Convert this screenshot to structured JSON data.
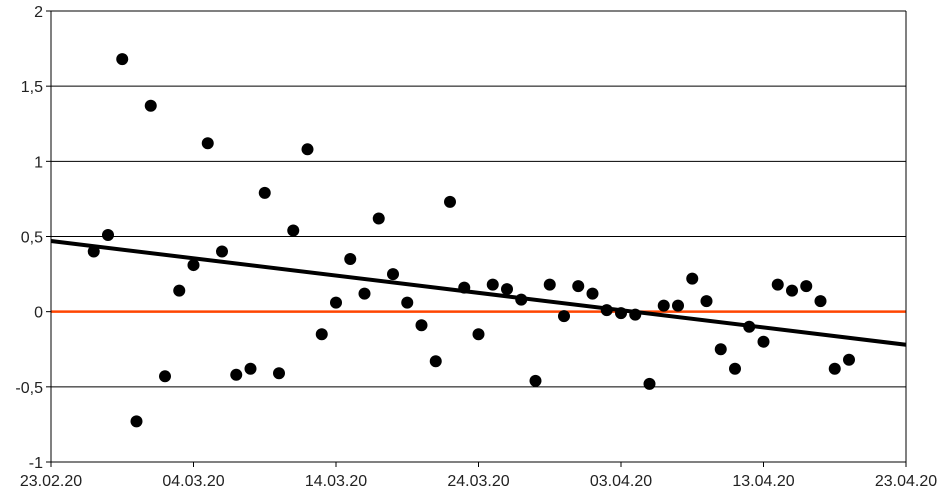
{
  "chart_data": {
    "type": "scatter",
    "title": "",
    "xlabel": "",
    "ylabel": "",
    "ylim": [
      -1,
      2
    ],
    "xlim": [
      "23.02.20",
      "23.04.20"
    ],
    "grid": true,
    "x_tick_labels": [
      "23.02.20",
      "04.03.20",
      "14.03.20",
      "24.03.20",
      "03.04.20",
      "13.04.20",
      "23.04.20"
    ],
    "y_tick_labels": [
      "-1",
      "-0,5",
      "0",
      "0,5",
      "1",
      "1,5",
      "2"
    ],
    "series": [
      {
        "type": "scatter",
        "color": "#000000",
        "points": [
          {
            "x": "26.02.20",
            "y": 0.4
          },
          {
            "x": "27.02.20",
            "y": 0.51
          },
          {
            "x": "28.02.20",
            "y": 1.68
          },
          {
            "x": "29.02.20",
            "y": -0.73
          },
          {
            "x": "01.03.20",
            "y": 1.37
          },
          {
            "x": "02.03.20",
            "y": -0.43
          },
          {
            "x": "03.03.20",
            "y": 0.14
          },
          {
            "x": "04.03.20",
            "y": 0.31
          },
          {
            "x": "05.03.20",
            "y": 1.12
          },
          {
            "x": "06.03.20",
            "y": 0.4
          },
          {
            "x": "07.03.20",
            "y": -0.42
          },
          {
            "x": "08.03.20",
            "y": -0.38
          },
          {
            "x": "09.03.20",
            "y": 0.79
          },
          {
            "x": "10.03.20",
            "y": -0.41
          },
          {
            "x": "11.03.20",
            "y": 0.54
          },
          {
            "x": "12.03.20",
            "y": 1.08
          },
          {
            "x": "13.03.20",
            "y": -0.15
          },
          {
            "x": "14.03.20",
            "y": 0.06
          },
          {
            "x": "15.03.20",
            "y": 0.35
          },
          {
            "x": "16.03.20",
            "y": 0.12
          },
          {
            "x": "17.03.20",
            "y": 0.62
          },
          {
            "x": "18.03.20",
            "y": 0.25
          },
          {
            "x": "19.03.20",
            "y": 0.06
          },
          {
            "x": "20.03.20",
            "y": -0.09
          },
          {
            "x": "21.03.20",
            "y": -0.33
          },
          {
            "x": "22.03.20",
            "y": 0.73
          },
          {
            "x": "23.03.20",
            "y": 0.16
          },
          {
            "x": "24.03.20",
            "y": -0.15
          },
          {
            "x": "25.03.20",
            "y": 0.18
          },
          {
            "x": "26.03.20",
            "y": 0.15
          },
          {
            "x": "27.03.20",
            "y": 0.08
          },
          {
            "x": "28.03.20",
            "y": -0.46
          },
          {
            "x": "29.03.20",
            "y": 0.18
          },
          {
            "x": "30.03.20",
            "y": -0.03
          },
          {
            "x": "31.03.20",
            "y": 0.17
          },
          {
            "x": "01.04.20",
            "y": 0.12
          },
          {
            "x": "02.04.20",
            "y": 0.01
          },
          {
            "x": "03.04.20",
            "y": -0.01
          },
          {
            "x": "04.04.20",
            "y": -0.02
          },
          {
            "x": "05.04.20",
            "y": -0.48
          },
          {
            "x": "06.04.20",
            "y": 0.04
          },
          {
            "x": "07.04.20",
            "y": 0.04
          },
          {
            "x": "08.04.20",
            "y": 0.22
          },
          {
            "x": "09.04.20",
            "y": 0.07
          },
          {
            "x": "10.04.20",
            "y": -0.25
          },
          {
            "x": "11.04.20",
            "y": -0.38
          },
          {
            "x": "12.04.20",
            "y": -0.1
          },
          {
            "x": "13.04.20",
            "y": -0.2
          },
          {
            "x": "14.04.20",
            "y": 0.18
          },
          {
            "x": "15.04.20",
            "y": 0.14
          },
          {
            "x": "16.04.20",
            "y": 0.17
          },
          {
            "x": "17.04.20",
            "y": 0.07
          },
          {
            "x": "18.04.20",
            "y": -0.38
          },
          {
            "x": "19.04.20",
            "y": -0.32
          }
        ]
      },
      {
        "type": "line",
        "color": "#000000",
        "points": [
          {
            "x": "23.02.20",
            "y": 0.47
          },
          {
            "x": "23.04.20",
            "y": -0.22
          }
        ]
      }
    ],
    "reference_line": {
      "y": 0,
      "color": "#ff4500"
    }
  }
}
